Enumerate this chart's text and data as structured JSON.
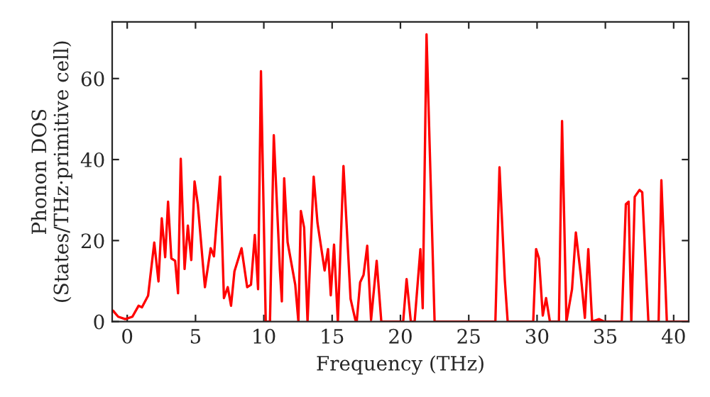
{
  "chart_data": {
    "type": "line",
    "xlabel": "Frequency (THz)",
    "ylabel": "Phonon DOS\n(States/THz·primitive cell)",
    "xlim": [
      -1.1,
      41.1
    ],
    "ylim": [
      0,
      74
    ],
    "xticks": [
      0,
      5,
      10,
      15,
      20,
      25,
      30,
      35,
      40
    ],
    "yticks": [
      0,
      20,
      40,
      60
    ],
    "grid": false,
    "legend": false,
    "marker": "none",
    "line_style": "solid",
    "series": [
      {
        "color": "#ff0000",
        "x": [
          -1.04,
          -0.66,
          -0.14,
          0.38,
          0.83,
          1.08,
          1.53,
          1.98,
          2.29,
          2.53,
          2.78,
          2.99,
          3.23,
          3.51,
          3.72,
          3.92,
          4.2,
          4.44,
          4.69,
          4.93,
          5.17,
          5.52,
          5.69,
          6.11,
          6.35,
          6.8,
          7.08,
          7.36,
          7.6,
          7.85,
          8.37,
          8.78,
          9.06,
          9.34,
          9.58,
          9.79,
          10.14,
          10.45,
          10.73,
          11.18,
          11.32,
          11.49,
          11.74,
          12.3,
          12.53,
          12.71,
          12.95,
          13.2,
          13.65,
          13.93,
          14.45,
          14.7,
          14.9,
          15.14,
          15.42,
          15.83,
          16.35,
          16.7,
          16.8,
          17.05,
          17.3,
          17.57,
          17.85,
          18.26,
          18.6,
          20.2,
          20.45,
          20.76,
          21.04,
          21.46,
          21.63,
          21.91,
          22.5,
          26.95,
          27.25,
          27.64,
          27.85,
          29.72,
          29.93,
          30.14,
          30.42,
          30.66,
          30.94,
          31.6,
          31.83,
          32.15,
          32.56,
          32.84,
          33.2,
          33.5,
          33.75,
          34.03,
          34.55,
          34.9,
          36.2,
          36.5,
          36.7,
          36.9,
          37.15,
          37.5,
          37.7,
          38.15,
          38.9,
          39.1,
          39.5,
          41.1
        ],
        "values": [
          2.7,
          1.2,
          0.6,
          1.2,
          3.9,
          3.5,
          6.4,
          19.5,
          9.9,
          25.5,
          15.9,
          29.6,
          15.6,
          15,
          7,
          40.2,
          13,
          23.7,
          15.2,
          34.6,
          29,
          15,
          8.5,
          18.1,
          16.1,
          35.8,
          5.8,
          8.5,
          3.9,
          12.4,
          18.1,
          8.5,
          9.1,
          21.4,
          8,
          61.8,
          0,
          0,
          46,
          12.6,
          5,
          35.4,
          19.6,
          9.1,
          0,
          27.3,
          23.2,
          0,
          35.8,
          24.3,
          12.6,
          17.9,
          6.5,
          19,
          0,
          38.4,
          5.6,
          0.4,
          0,
          9.7,
          11.5,
          18.7,
          0.4,
          15,
          0,
          0,
          10.5,
          0,
          0,
          17.9,
          3.3,
          70.9,
          0,
          0,
          38.1,
          10.3,
          0,
          0,
          17.9,
          15.6,
          1.5,
          5.8,
          0,
          0,
          49.5,
          0,
          8,
          22,
          11.5,
          0.9,
          17.9,
          0,
          0.6,
          0,
          0,
          29,
          29.6,
          0,
          30.8,
          32.5,
          31.9,
          0,
          0,
          34.9,
          0,
          0
        ]
      }
    ]
  }
}
